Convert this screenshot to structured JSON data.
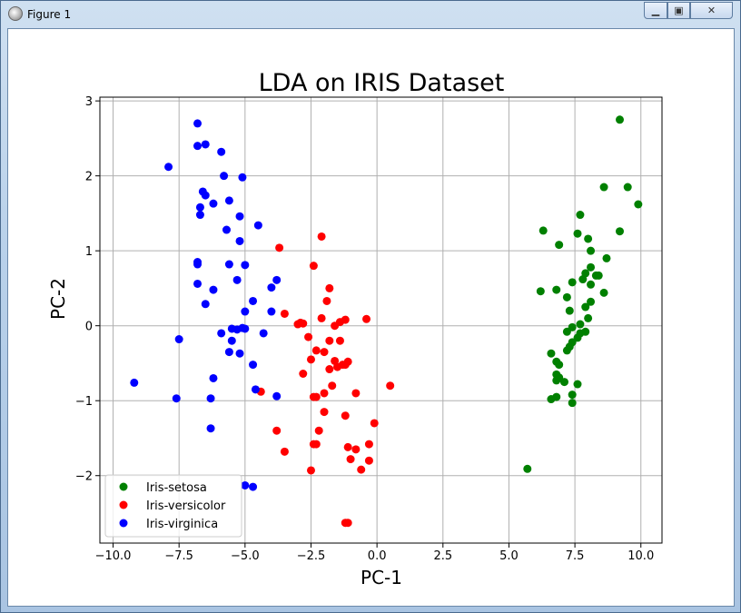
{
  "window": {
    "title": "Figure 1",
    "icon": "figure-app-icon",
    "controls": {
      "minimize": "minimize-icon",
      "maximize": "maximize-icon",
      "close": "close-icon"
    }
  },
  "chart_data": {
    "type": "scatter",
    "title": "LDA on IRIS Dataset",
    "xlabel": "PC-1",
    "ylabel": "PC-2",
    "xlim": [
      -10.5,
      10.8
    ],
    "ylim": [
      -2.9,
      3.05
    ],
    "xticks": [
      -10.0,
      -7.5,
      -5.0,
      -2.5,
      0.0,
      2.5,
      5.0,
      7.5,
      10.0
    ],
    "xtick_labels": [
      "−10.0",
      "−7.5",
      "−5.0",
      "−2.5",
      "0.0",
      "2.5",
      "5.0",
      "7.5",
      "10.0"
    ],
    "yticks": [
      -2,
      -1,
      0,
      1,
      2,
      3
    ],
    "ytick_labels": [
      "−2",
      "−1",
      "0",
      "1",
      "2",
      "3"
    ],
    "grid": true,
    "legend": "lower-left",
    "series": [
      {
        "name": "Iris-setosa",
        "color": "#008000",
        "points": [
          [
            9.2,
            2.75
          ],
          [
            8.6,
            1.85
          ],
          [
            9.5,
            1.85
          ],
          [
            9.9,
            1.62
          ],
          [
            6.3,
            1.27
          ],
          [
            7.7,
            1.48
          ],
          [
            6.9,
            1.08
          ],
          [
            7.6,
            1.23
          ],
          [
            8.0,
            1.16
          ],
          [
            9.2,
            1.26
          ],
          [
            8.1,
            1.0
          ],
          [
            8.7,
            0.9
          ],
          [
            8.1,
            0.78
          ],
          [
            7.9,
            0.7
          ],
          [
            8.3,
            0.67
          ],
          [
            8.4,
            0.67
          ],
          [
            7.8,
            0.62
          ],
          [
            7.4,
            0.58
          ],
          [
            8.1,
            0.55
          ],
          [
            6.2,
            0.46
          ],
          [
            6.8,
            0.48
          ],
          [
            8.6,
            0.44
          ],
          [
            7.2,
            0.38
          ],
          [
            8.1,
            0.32
          ],
          [
            7.9,
            0.25
          ],
          [
            7.3,
            0.2
          ],
          [
            8.0,
            0.1
          ],
          [
            7.4,
            -0.02
          ],
          [
            7.7,
            0.02
          ],
          [
            7.9,
            -0.08
          ],
          [
            7.2,
            -0.08
          ],
          [
            7.7,
            -0.1
          ],
          [
            7.4,
            -0.22
          ],
          [
            7.6,
            -0.16
          ],
          [
            7.3,
            -0.28
          ],
          [
            7.2,
            -0.33
          ],
          [
            6.6,
            -0.37
          ],
          [
            6.8,
            -0.48
          ],
          [
            6.9,
            -0.52
          ],
          [
            6.8,
            -0.65
          ],
          [
            6.9,
            -0.69
          ],
          [
            6.8,
            -0.73
          ],
          [
            7.1,
            -0.75
          ],
          [
            7.6,
            -0.78
          ],
          [
            7.4,
            -0.92
          ],
          [
            6.8,
            -0.95
          ],
          [
            6.6,
            -0.98
          ],
          [
            7.4,
            -1.03
          ],
          [
            5.7,
            -1.91
          ]
        ]
      },
      {
        "name": "Iris-versicolor",
        "color": "#ff0000",
        "points": [
          [
            -3.7,
            1.04
          ],
          [
            -2.1,
            1.19
          ],
          [
            -2.4,
            0.8
          ],
          [
            -1.8,
            0.5
          ],
          [
            -1.9,
            0.33
          ],
          [
            -3.5,
            0.16
          ],
          [
            -2.9,
            0.04
          ],
          [
            -2.8,
            0.03
          ],
          [
            -2.1,
            0.1
          ],
          [
            -1.4,
            0.05
          ],
          [
            -1.2,
            0.08
          ],
          [
            -0.4,
            0.09
          ],
          [
            -3.0,
            0.02
          ],
          [
            -1.6,
            0.0
          ],
          [
            -2.6,
            -0.15
          ],
          [
            -1.8,
            -0.2
          ],
          [
            -1.4,
            -0.2
          ],
          [
            -2.3,
            -0.33
          ],
          [
            -2.0,
            -0.35
          ],
          [
            -2.5,
            -0.45
          ],
          [
            -1.6,
            -0.47
          ],
          [
            -1.3,
            -0.52
          ],
          [
            -1.5,
            -0.55
          ],
          [
            -1.1,
            -0.48
          ],
          [
            -1.2,
            -0.52
          ],
          [
            -1.8,
            -0.58
          ],
          [
            -2.8,
            -0.64
          ],
          [
            -1.7,
            -0.8
          ],
          [
            -0.8,
            -0.9
          ],
          [
            0.5,
            -0.8
          ],
          [
            -2.0,
            -0.9
          ],
          [
            -4.4,
            -0.88
          ],
          [
            -2.4,
            -0.95
          ],
          [
            -2.3,
            -0.95
          ],
          [
            -2.0,
            -1.15
          ],
          [
            -1.2,
            -1.2
          ],
          [
            -3.8,
            -1.4
          ],
          [
            -2.2,
            -1.4
          ],
          [
            -0.1,
            -1.3
          ],
          [
            -2.3,
            -1.58
          ],
          [
            -2.4,
            -1.58
          ],
          [
            -1.1,
            -1.62
          ],
          [
            -0.8,
            -1.65
          ],
          [
            -0.3,
            -1.58
          ],
          [
            -0.3,
            -1.8
          ],
          [
            -1.0,
            -1.78
          ],
          [
            -3.5,
            -1.68
          ],
          [
            -0.6,
            -1.92
          ],
          [
            -2.5,
            -1.93
          ],
          [
            -1.2,
            -2.63
          ],
          [
            -1.1,
            -2.63
          ]
        ]
      },
      {
        "name": "Iris-virginica",
        "color": "#0000ff",
        "points": [
          [
            -6.8,
            2.7
          ],
          [
            -6.8,
            2.4
          ],
          [
            -6.5,
            2.42
          ],
          [
            -5.9,
            2.32
          ],
          [
            -7.9,
            2.12
          ],
          [
            -5.8,
            2.0
          ],
          [
            -5.1,
            1.98
          ],
          [
            -6.6,
            1.79
          ],
          [
            -6.5,
            1.74
          ],
          [
            -5.6,
            1.67
          ],
          [
            -6.2,
            1.63
          ],
          [
            -6.7,
            1.58
          ],
          [
            -6.7,
            1.48
          ],
          [
            -5.2,
            1.46
          ],
          [
            -4.5,
            1.34
          ],
          [
            -5.7,
            1.28
          ],
          [
            -5.2,
            1.13
          ],
          [
            -6.8,
            0.85
          ],
          [
            -6.8,
            0.82
          ],
          [
            -5.6,
            0.82
          ],
          [
            -5.0,
            0.81
          ],
          [
            -3.8,
            0.61
          ],
          [
            -5.3,
            0.61
          ],
          [
            -6.8,
            0.56
          ],
          [
            -4.0,
            0.51
          ],
          [
            -6.2,
            0.48
          ],
          [
            -4.7,
            0.33
          ],
          [
            -6.5,
            0.29
          ],
          [
            -4.0,
            0.19
          ],
          [
            -5.0,
            0.19
          ],
          [
            -7.5,
            -0.18
          ],
          [
            -5.9,
            -0.1
          ],
          [
            -5.5,
            -0.04
          ],
          [
            -5.3,
            -0.05
          ],
          [
            -5.1,
            -0.03
          ],
          [
            -5.0,
            -0.04
          ],
          [
            -4.3,
            -0.1
          ],
          [
            -5.5,
            -0.2
          ],
          [
            -5.6,
            -0.35
          ],
          [
            -5.2,
            -0.37
          ],
          [
            -4.7,
            -0.52
          ],
          [
            -6.2,
            -0.7
          ],
          [
            -9.2,
            -0.76
          ],
          [
            -4.6,
            -0.85
          ],
          [
            -3.8,
            -0.94
          ],
          [
            -7.6,
            -0.97
          ],
          [
            -6.3,
            -0.97
          ],
          [
            -6.3,
            -1.37
          ],
          [
            -5.0,
            -2.13
          ],
          [
            -4.7,
            -2.15
          ]
        ]
      }
    ]
  }
}
